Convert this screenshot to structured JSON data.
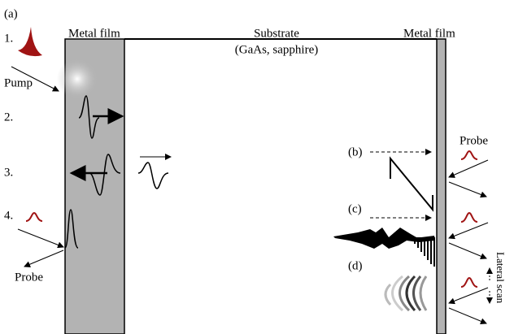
{
  "panel_label": "(a)",
  "labels": {
    "left_film": "Metal film",
    "substrate": "Substrate",
    "substrate_materials": "(GaAs, sapphire)",
    "right_film": "Metal film",
    "pump": "Pump",
    "probe_left": "Probe",
    "probe_right": "Probe",
    "lateral_scan": "Lateral scan"
  },
  "steps": [
    "1.",
    "2.",
    "3.",
    "4."
  ],
  "sub_panels": [
    "(b)",
    "(c)",
    "(d)"
  ]
}
